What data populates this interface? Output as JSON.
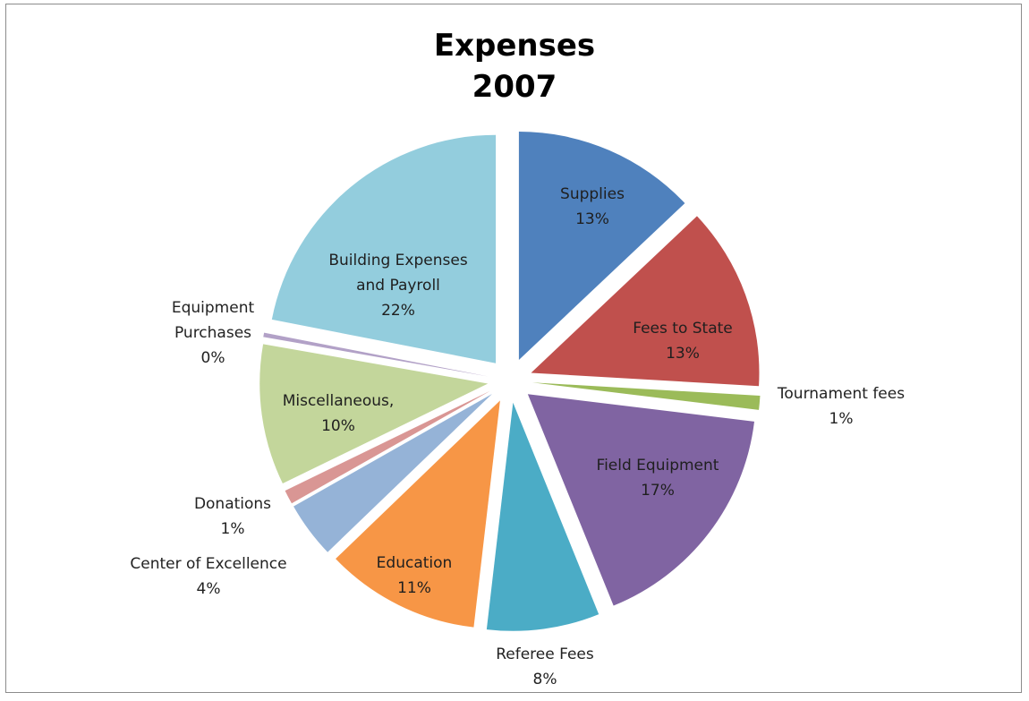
{
  "chart_data": {
    "type": "pie",
    "title": [
      "Expenses",
      "2007"
    ],
    "exploded": true,
    "slices": [
      {
        "name": "Supplies",
        "value": 13,
        "pct_label": "13%",
        "color": "#4f81bd",
        "label_inside": true
      },
      {
        "name": "Fees to State",
        "value": 13,
        "pct_label": "13%",
        "color": "#c0504d",
        "label_inside": true
      },
      {
        "name": "Tournament fees",
        "value": 1,
        "pct_label": "1%",
        "color": "#9bbb59",
        "label_inside": false
      },
      {
        "name": "Field Equipment",
        "value": 17,
        "pct_label": "17%",
        "color": "#8064a2",
        "label_inside": true
      },
      {
        "name": "Referee Fees",
        "value": 8,
        "pct_label": "8%",
        "color": "#4bacc6",
        "label_inside": false
      },
      {
        "name": "Education",
        "value": 11,
        "pct_label": "11%",
        "color": "#f79646",
        "label_inside": true
      },
      {
        "name": "Center of Excellence",
        "value": 4,
        "pct_label": "4%",
        "color": "#95b3d7",
        "label_inside": false
      },
      {
        "name": "Donations",
        "value": 1,
        "pct_label": "1%",
        "color": "#d99694",
        "label_inside": false
      },
      {
        "name": "Miscellaneous,",
        "value": 10,
        "pct_label": "10%",
        "color": "#c3d69b",
        "label_inside": true
      },
      {
        "name": "Equipment Purchases",
        "value": 0.3,
        "pct_label": "0%",
        "color": "#b2a1c7",
        "label_inside": false
      },
      {
        "name": "Building Expenses and Payroll",
        "value": 22,
        "pct_label": "22%",
        "color": "#93cddd",
        "label_inside": true
      }
    ]
  }
}
